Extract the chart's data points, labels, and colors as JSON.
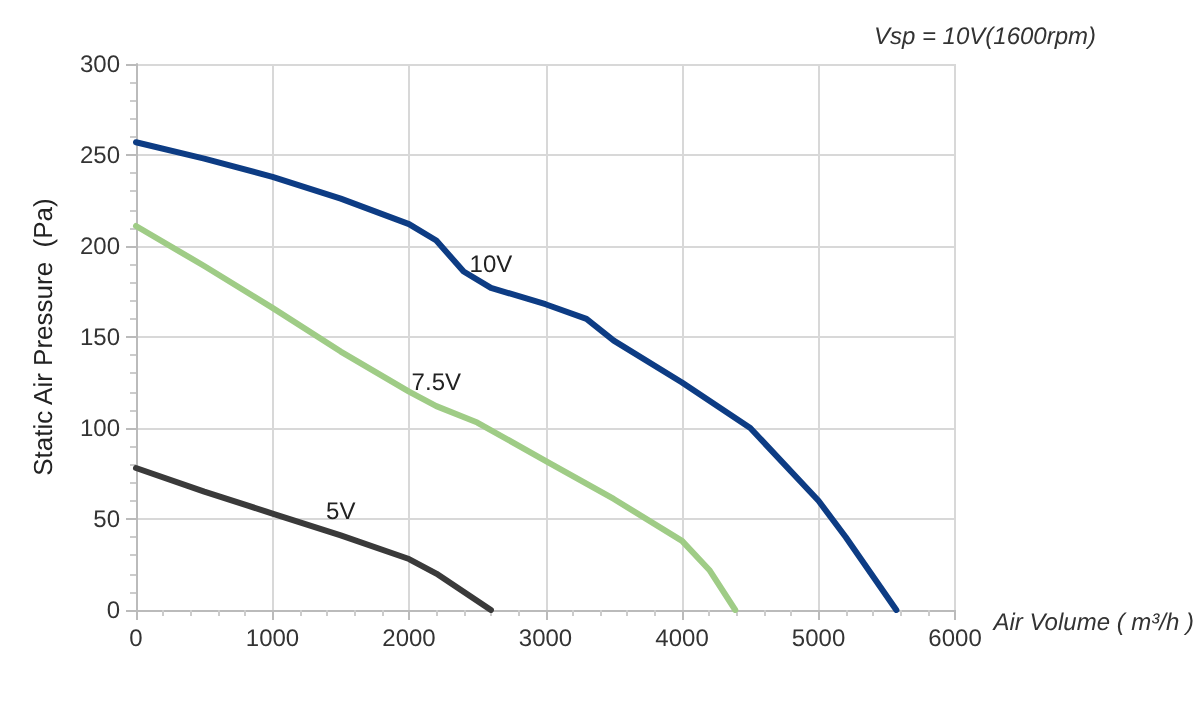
{
  "chart_data": {
    "type": "line",
    "annotations": [
      "Vsp = 10V(1600rpm)"
    ],
    "xlabel": "Air Volume ( m³/h )",
    "ylabel": "Static Air Pressure  (Pa)",
    "xlim": [
      0,
      6000
    ],
    "xticks": [
      0,
      1000,
      2000,
      3000,
      4000,
      5000,
      6000
    ],
    "ylim": [
      0,
      300
    ],
    "yticks": [
      0,
      50,
      100,
      150,
      200,
      250,
      300
    ],
    "grid": true,
    "legend": false,
    "series": [
      {
        "name": "10V",
        "color": "#0d3c84",
        "x": [
          0,
          500,
          1000,
          1500,
          2000,
          2200,
          2400,
          2600,
          3000,
          3300,
          3500,
          4000,
          4500,
          5000,
          5200,
          5570
        ],
        "values": [
          257,
          248,
          238,
          226,
          212,
          203,
          186,
          177,
          168,
          160,
          148,
          125,
          100,
          60,
          40,
          0
        ]
      },
      {
        "name": "7.5V",
        "color": "#9fcc86",
        "x": [
          0,
          500,
          1000,
          1500,
          2000,
          2200,
          2500,
          3000,
          3500,
          4000,
          4200,
          4390
        ],
        "values": [
          211,
          189,
          166,
          142,
          120,
          112,
          103,
          82,
          61,
          38,
          22,
          0
        ]
      },
      {
        "name": "5V",
        "color": "#3a3a3a",
        "x": [
          0,
          500,
          1000,
          1500,
          2000,
          2200,
          2400,
          2600
        ],
        "values": [
          78,
          65,
          53,
          41,
          28,
          20,
          10,
          0
        ]
      }
    ]
  }
}
